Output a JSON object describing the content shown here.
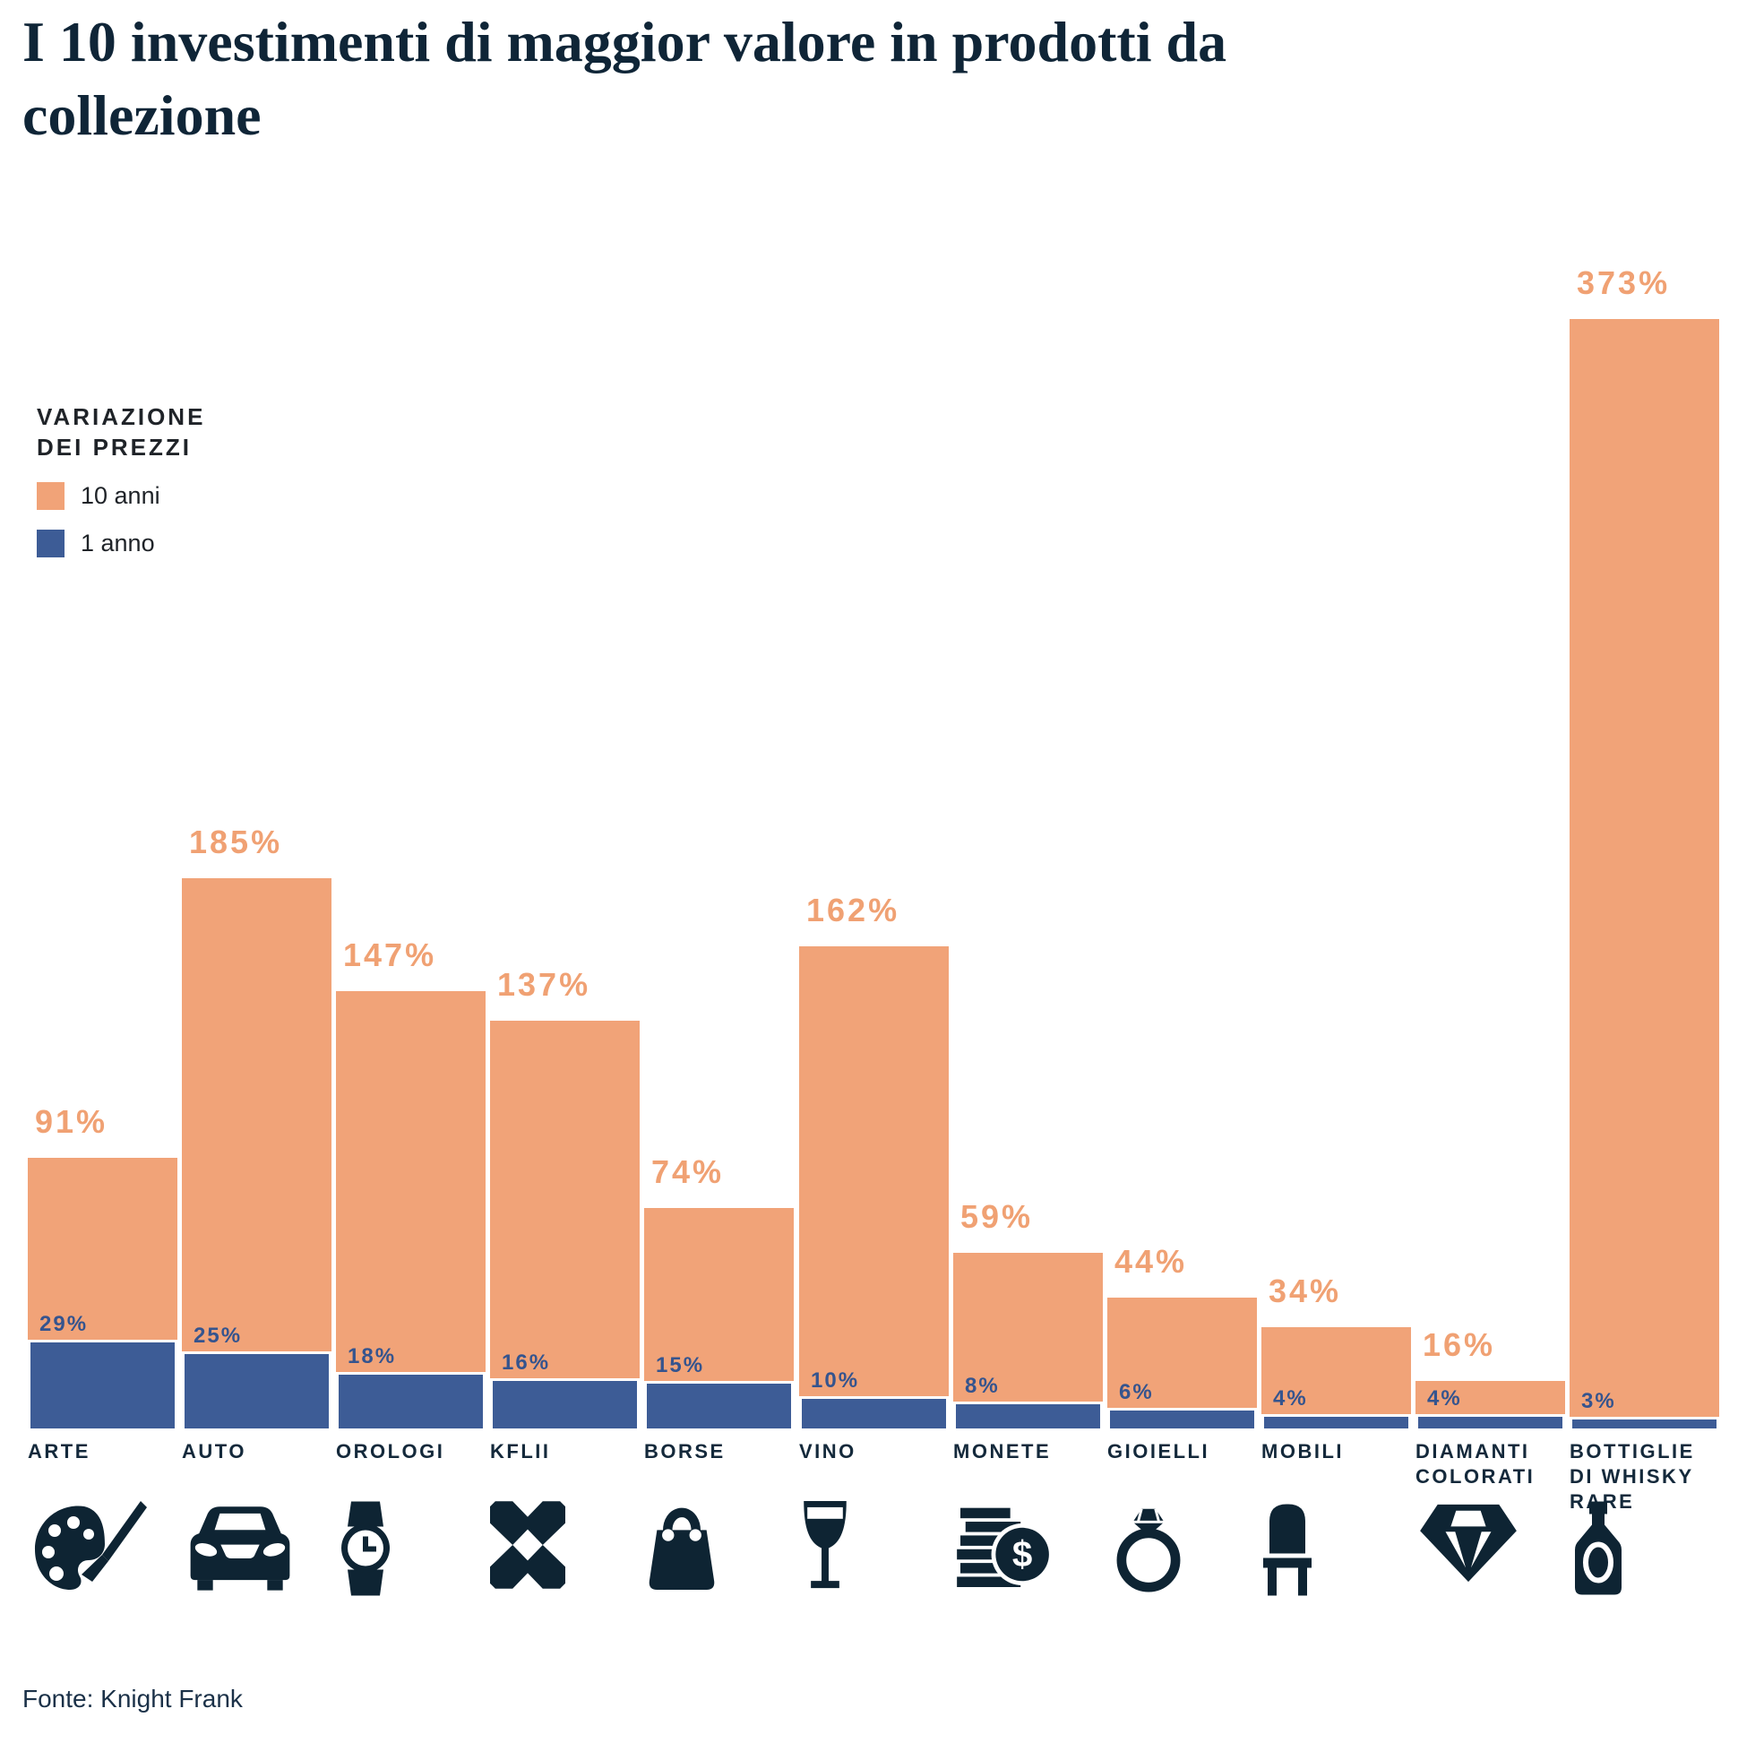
{
  "header": {
    "title": "I 10 investimenti di maggior valore in prodotti da collezione"
  },
  "legend": {
    "title_line1": "VARIAZIONE",
    "title_line2": "DEI PREZZI",
    "items": [
      {
        "label": "10 anni",
        "color": "#F1A378"
      },
      {
        "label": "1 anno",
        "color": "#3D5C96"
      }
    ]
  },
  "colors": {
    "ten_year_bar": "#F1A378",
    "one_year_bar": "#3D5C96",
    "ten_year_label": "#F0A173",
    "one_year_label": "#35548E",
    "ink": "#0E2433",
    "category_label": "#14293B"
  },
  "footer": {
    "source": "Fonte: Knight Frank"
  },
  "chart_data": {
    "type": "bar",
    "title": "I 10 investimenti di maggior valore in prodotti da collezione",
    "legend_title": "VARIAZIONE DEI PREZZI",
    "legend_position": "upper-left",
    "grid": false,
    "value_suffix": "%",
    "ylim": [
      0,
      373
    ],
    "categories": [
      "ARTE",
      "AUTO",
      "OROLOGI",
      "KFLII",
      "BORSE",
      "VINO",
      "MONETE",
      "GIOIELLI",
      "MOBILI",
      "DIAMANTI COLORATI",
      "BOTTIGLIE DI WHISKY RARE"
    ],
    "icons": [
      "palette-icon",
      "car-icon",
      "watch-icon",
      "kflii-icon",
      "handbag-icon",
      "wine-glass-icon",
      "coins-icon",
      "ring-icon",
      "chair-icon",
      "diamond-icon",
      "whisky-bottle-icon"
    ],
    "series": [
      {
        "name": "10 anni",
        "color": "#F1A378",
        "values": [
          91,
          185,
          147,
          137,
          74,
          162,
          59,
          44,
          34,
          16,
          373
        ]
      },
      {
        "name": "1 anno",
        "color": "#3D5C96",
        "values": [
          29,
          25,
          18,
          16,
          15,
          10,
          8,
          6,
          4,
          4,
          3
        ]
      }
    ],
    "source": "Fonte: Knight Frank"
  }
}
